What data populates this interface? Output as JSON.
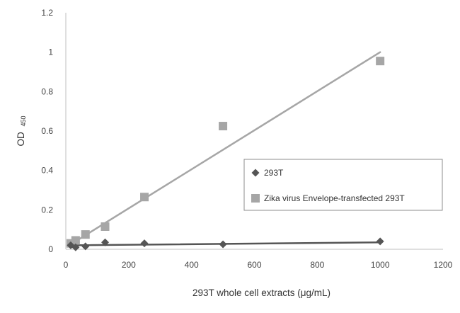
{
  "chart_data": {
    "type": "scatter",
    "title": "",
    "xlabel": "293T whole cell extracts (μg/mL)",
    "ylabel": {
      "main": "OD",
      "subscript": "450"
    },
    "xlim": [
      0,
      1200
    ],
    "ylim": [
      0,
      1.2
    ],
    "xticks": [
      "0",
      "200",
      "400",
      "600",
      "800",
      "1000",
      "1200"
    ],
    "yticks": [
      "0",
      "0.2",
      "0.4",
      "0.6",
      "0.8",
      "1",
      "1.2"
    ],
    "grid": "none",
    "legend_position": "right",
    "series": [
      {
        "name": "293T",
        "marker": "diamond",
        "color": "#555555",
        "trendline": "linear",
        "points": [
          {
            "x": 15.6,
            "y": 0.02
          },
          {
            "x": 31.25,
            "y": 0.01
          },
          {
            "x": 62.5,
            "y": 0.015
          },
          {
            "x": 125,
            "y": 0.035
          },
          {
            "x": 250,
            "y": 0.03
          },
          {
            "x": 500,
            "y": 0.025
          },
          {
            "x": 1000,
            "y": 0.04
          }
        ],
        "trend": {
          "x": [
            15.6,
            1000
          ],
          "y": [
            0.02,
            0.035
          ]
        }
      },
      {
        "name": "Zika virus Envelope-transfected 293T",
        "marker": "square",
        "color": "#a6a6a6",
        "trendline": "linear",
        "points": [
          {
            "x": 15.6,
            "y": 0.03
          },
          {
            "x": 31.25,
            "y": 0.045
          },
          {
            "x": 62.5,
            "y": 0.075
          },
          {
            "x": 125,
            "y": 0.115
          },
          {
            "x": 250,
            "y": 0.265
          },
          {
            "x": 500,
            "y": 0.625
          },
          {
            "x": 1000,
            "y": 0.955
          }
        ],
        "trend": {
          "x": [
            15.6,
            1000
          ],
          "y": [
            0.025,
            1.0
          ]
        }
      }
    ]
  }
}
